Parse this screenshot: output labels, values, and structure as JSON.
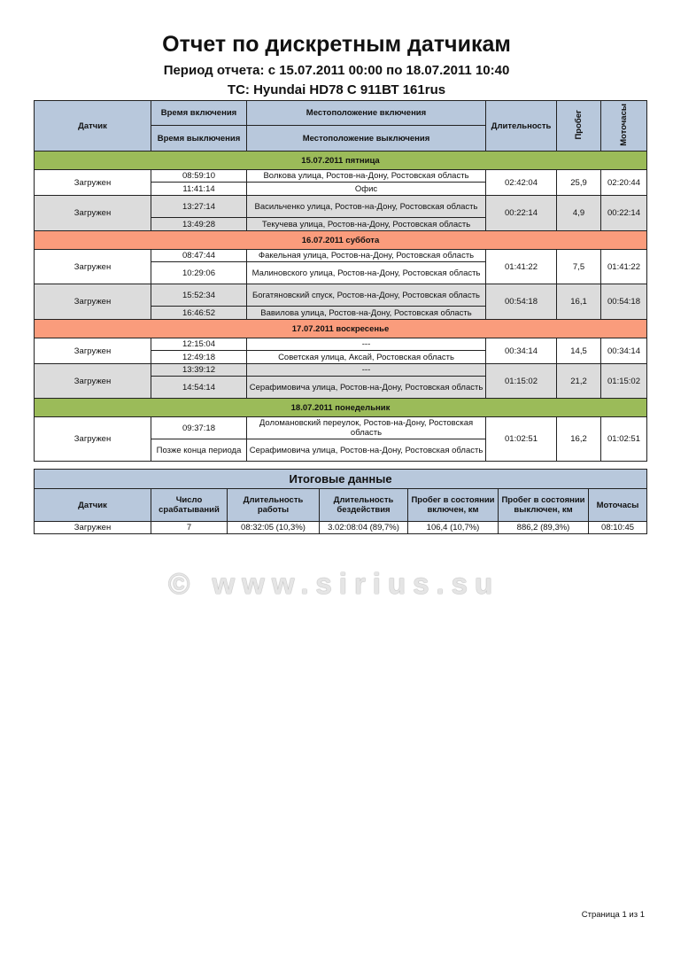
{
  "title": "Отчет по дискретным датчикам",
  "period": "Период отчета: с 15.07.2011 00:00 по 18.07.2011 10:40",
  "vehicle": "ТС: Hyundai HD78  С 911ВТ 161rus",
  "colors": {
    "header": "#b8c8dc",
    "weekday": "#9bbb59",
    "weekend": "#fa9c7c",
    "alt_row": "#dcdcdc"
  },
  "headers": {
    "sensor": "Датчик",
    "on_time": "Время включения",
    "off_time": "Время выключения",
    "on_loc": "Местоположение включения",
    "off_loc": "Местоположение выключения",
    "duration": "Длительность",
    "mileage": "Пробег",
    "motohours": "Моточасы"
  },
  "days": [
    {
      "label": "15.07.2011 пятница",
      "color": "#9bbb59",
      "rows": [
        {
          "sensor": "Загружен",
          "on_time": "08:59:10",
          "on_loc": "Волкова улица, Ростов-на-Дону, Ростовская область",
          "off_time": "11:41:14",
          "off_loc": "Офис",
          "duration": "02:42:04",
          "mileage": "25,9",
          "motohours": "02:20:44"
        },
        {
          "sensor": "Загружен",
          "on_time": "13:27:14",
          "on_loc": "Васильченко улица, Ростов-на-Дону, Ростовская область",
          "off_time": "13:49:28",
          "off_loc": "Текучева улица, Ростов-на-Дону, Ростовская область",
          "duration": "00:22:14",
          "mileage": "4,9",
          "motohours": "00:22:14"
        }
      ]
    },
    {
      "label": "16.07.2011 суббота",
      "color": "#fa9c7c",
      "rows": [
        {
          "sensor": "Загружен",
          "on_time": "08:47:44",
          "on_loc": "Факельная улица, Ростов-на-Дону, Ростовская область",
          "off_time": "10:29:06",
          "off_loc": "Малиновского улица, Ростов-на-Дону, Ростовская область",
          "duration": "01:41:22",
          "mileage": "7,5",
          "motohours": "01:41:22"
        },
        {
          "sensor": "Загружен",
          "on_time": "15:52:34",
          "on_loc": "Богатяновский спуск, Ростов-на-Дону, Ростовская область",
          "off_time": "16:46:52",
          "off_loc": "Вавилова улица, Ростов-на-Дону, Ростовская область",
          "duration": "00:54:18",
          "mileage": "16,1",
          "motohours": "00:54:18"
        }
      ]
    },
    {
      "label": "17.07.2011 воскресенье",
      "color": "#fa9c7c",
      "rows": [
        {
          "sensor": "Загружен",
          "on_time": "12:15:04",
          "on_loc": "---",
          "off_time": "12:49:18",
          "off_loc": "Советская улица, Аксай, Ростовская область",
          "duration": "00:34:14",
          "mileage": "14,5",
          "motohours": "00:34:14"
        },
        {
          "sensor": "Загружен",
          "on_time": "13:39:12",
          "on_loc": "---",
          "off_time": "14:54:14",
          "off_loc": "Серафимовича улица, Ростов-на-Дону, Ростовская область",
          "duration": "01:15:02",
          "mileage": "21,2",
          "motohours": "01:15:02"
        }
      ]
    },
    {
      "label": "18.07.2011 понедельник",
      "color": "#9bbb59",
      "rows": [
        {
          "sensor": "Загружен",
          "on_time": "09:37:18",
          "on_loc": "Доломановский переулок, Ростов-на-Дону, Ростовская область",
          "off_time": "Позже конца периода",
          "off_loc": "Серафимовича улица, Ростов-на-Дону, Ростовская область",
          "duration": "01:02:51",
          "mileage": "16,2",
          "motohours": "01:02:51"
        }
      ]
    }
  ],
  "summary": {
    "title": "Итоговые данные",
    "headers": [
      "Датчик",
      "Число срабатываний",
      "Длительность работы",
      "Длительность бездействия",
      "Пробег в состоянии включен, км",
      "Пробег в состоянии выключен, км",
      "Моточасы"
    ],
    "row": [
      "Загружен",
      "7",
      "08:32:05 (10,3%)",
      "3.02:08:04 (89,7%)",
      "106,4 (10,7%)",
      "886,2 (89,3%)",
      "08:10:45"
    ]
  },
  "watermark": "© www.sirius.su",
  "footer": "Страница 1 из 1"
}
